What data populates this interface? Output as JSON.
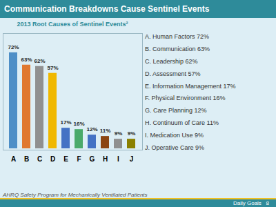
{
  "chart_data": {
    "type": "bar",
    "title": "Communication Breakdowns Cause Sentinel Events",
    "subtitle": "2013 Root Causes of Sentinel Events²",
    "categories": [
      "A",
      "B",
      "C",
      "D",
      "E",
      "F",
      "G",
      "H",
      "I",
      "J"
    ],
    "values": [
      72,
      63,
      62,
      57,
      17,
      16,
      12,
      11,
      9,
      9
    ],
    "value_labels": [
      "72%",
      "63%",
      "62%",
      "57%",
      "17%",
      "16%",
      "12%",
      "11%",
      "9%",
      "9%"
    ],
    "colors": [
      "#4e8fc7",
      "#e07830",
      "#909090",
      "#f0b800",
      "#4472c4",
      "#4aaa6a",
      "#4472c4",
      "#8b4513",
      "#909090",
      "#8b8000"
    ],
    "ylim": [
      0,
      85
    ],
    "data_labels": true,
    "tick_labels": "x",
    "annotations": [
      "A. Human Factors 72%",
      "B. Communication 63%",
      "C. Leadership 62%",
      "D. Assessment 57%",
      "E. Information Management 17%",
      "F. Physical Environment 16%",
      "G. Care Planning 12%",
      "H. Continuum of Care 11%",
      "I. Medication Use  9%",
      "J. Operative Care  9%",
      "AHRQ Safety Program for Mechanically Ventilated Patients",
      "Daily Goals   8"
    ]
  }
}
